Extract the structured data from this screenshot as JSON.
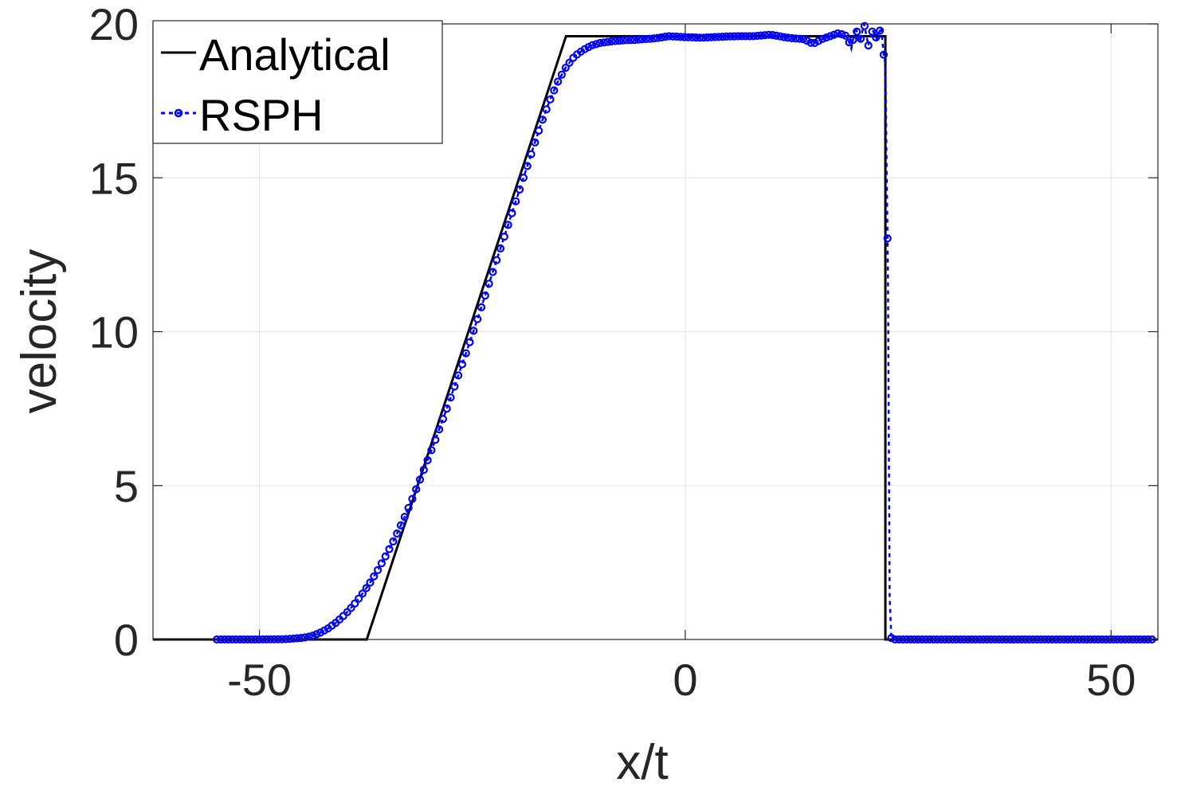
{
  "chart_data": {
    "type": "line",
    "title": "",
    "xlabel": "x/t",
    "ylabel": "velocity",
    "xlim": [
      -62.5,
      55.5
    ],
    "ylim": [
      0,
      20
    ],
    "x_ticks": [
      -50,
      0,
      50
    ],
    "y_ticks": [
      0,
      5,
      10,
      15,
      20
    ],
    "x_tick_labels": [
      "-50",
      "0",
      "50"
    ],
    "y_tick_labels": [
      "0",
      "5",
      "10",
      "15",
      "20"
    ],
    "grid": true,
    "legend_position": "top-left",
    "series": [
      {
        "name": "Analytical",
        "style": "solid",
        "color": "#000000",
        "x": [
          -62.5,
          -37.4,
          -14.0,
          23.5,
          23.5,
          55.5
        ],
        "y": [
          0,
          0,
          19.6,
          19.6,
          0,
          0
        ]
      },
      {
        "name": "RSPH",
        "style": "dotted-circles",
        "color": "#0000ff",
        "x": [
          -55,
          -50,
          -47,
          -45,
          -44,
          -43,
          -42,
          -41,
          -40,
          -39,
          -38,
          -37,
          -36,
          -35,
          -34,
          -33,
          -32,
          -31,
          -30,
          -29,
          -28,
          -27,
          -26,
          -25,
          -24,
          -23,
          -22,
          -21,
          -20,
          -19,
          -18,
          -17,
          -16,
          -15,
          -14,
          -13,
          -12,
          -11,
          -10,
          -9,
          -8,
          -7,
          -6,
          -5,
          -4,
          -3,
          -2,
          0,
          2,
          4,
          6,
          8,
          10,
          12,
          14,
          15,
          16,
          17,
          18,
          19,
          19.5,
          20,
          20.5,
          21,
          21.5,
          22,
          22.5,
          23,
          23.3,
          23.5,
          23.8,
          24,
          24.2,
          24.5,
          25,
          30,
          35,
          40,
          45,
          50,
          55
        ],
        "y": [
          0,
          0,
          0.01,
          0.05,
          0.1,
          0.2,
          0.35,
          0.55,
          0.8,
          1.1,
          1.45,
          1.85,
          2.3,
          2.8,
          3.35,
          3.95,
          4.6,
          5.3,
          6.0,
          6.75,
          7.5,
          8.3,
          9.1,
          9.9,
          10.75,
          11.6,
          12.45,
          13.3,
          14.15,
          15.0,
          15.85,
          16.7,
          17.45,
          18.1,
          18.6,
          18.95,
          19.15,
          19.3,
          19.38,
          19.42,
          19.45,
          19.47,
          19.48,
          19.5,
          19.52,
          19.55,
          19.6,
          19.57,
          19.55,
          19.58,
          19.6,
          19.6,
          19.65,
          19.55,
          19.5,
          19.35,
          19.5,
          19.6,
          19.7,
          19.6,
          19.2,
          19.9,
          19.4,
          20.0,
          19.3,
          19.8,
          19.5,
          19.9,
          19.0,
          18.7,
          11.9,
          1.4,
          0.05,
          0,
          0,
          0,
          0,
          0,
          0,
          0,
          0
        ]
      }
    ]
  }
}
